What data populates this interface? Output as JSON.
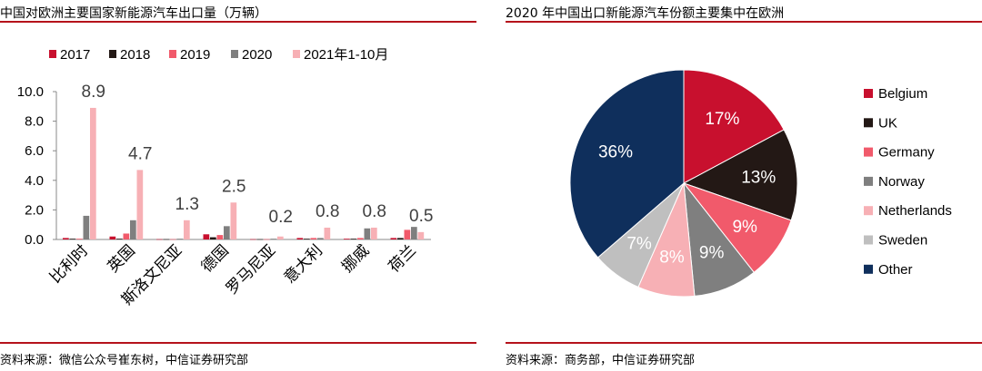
{
  "left": {
    "title": "中国对欧洲主要国家新能源汽车出口量（万辆）",
    "source": "资料来源：微信公众号崔东树，中信证券研究部",
    "chart_data": {
      "type": "bar",
      "title": "中国对欧洲主要国家新能源汽车出口量（万辆）",
      "categories": [
        "比利时",
        "英国",
        "斯洛文尼亚",
        "德国",
        "罗马尼亚",
        "意大利",
        "挪威",
        "荷兰"
      ],
      "ylim": [
        0,
        10
      ],
      "yticks": [
        "0.0",
        "2.0",
        "4.0",
        "6.0",
        "8.0",
        "10.0"
      ],
      "series": [
        {
          "name": "2017",
          "color": "#c8102e",
          "values": [
            0.1,
            0.2,
            0.02,
            0.35,
            0.02,
            0.1,
            0.05,
            0.1
          ]
        },
        {
          "name": "2018",
          "color": "#231815",
          "values": [
            0.05,
            0.05,
            0.02,
            0.15,
            0.02,
            0.05,
            0.05,
            0.1
          ]
        },
        {
          "name": "2019",
          "color": "#f15a6b",
          "values": [
            0.05,
            0.4,
            0.02,
            0.3,
            0.02,
            0.1,
            0.1,
            0.65
          ]
        },
        {
          "name": "2020",
          "color": "#7f7f7f",
          "values": [
            1.6,
            1.3,
            0.05,
            0.9,
            0.05,
            0.1,
            0.75,
            0.85
          ]
        },
        {
          "name": "2021年1-10月",
          "color": "#f7b0b5",
          "values": [
            8.9,
            4.7,
            1.3,
            2.5,
            0.2,
            0.8,
            0.8,
            0.5
          ]
        }
      ],
      "data_labels": [
        "8.9",
        "4.7",
        "1.3",
        "2.5",
        "0.2",
        "0.8",
        "0.8",
        "0.5"
      ],
      "legend_position": "top"
    }
  },
  "right": {
    "title": "2020 年中国出口新能源汽车份额主要集中在欧洲",
    "source": "资料来源：商务部，中信证券研究部",
    "chart_data": {
      "type": "pie",
      "title": "2020 年中国出口新能源汽车份额主要集中在欧洲",
      "labels": [
        "Belgium",
        "UK",
        "Germany",
        "Norway",
        "Netherlands",
        "Sweden",
        "Other"
      ],
      "values": [
        17,
        13,
        9,
        9,
        8,
        7,
        36
      ],
      "value_labels": [
        "17%",
        "13%",
        "9%",
        "9%",
        "8%",
        "7%",
        "36%"
      ],
      "colors": [
        "#c8102e",
        "#231815",
        "#f15a6b",
        "#7f7f7f",
        "#f7b0b5",
        "#bfbfbf",
        "#0f2f5c"
      ],
      "label_colors": [
        "#ffffff",
        "#ffffff",
        "#ffffff",
        "#ffffff",
        "#ffffff",
        "#ffffff",
        "#ffffff"
      ],
      "legend_position": "right"
    }
  }
}
